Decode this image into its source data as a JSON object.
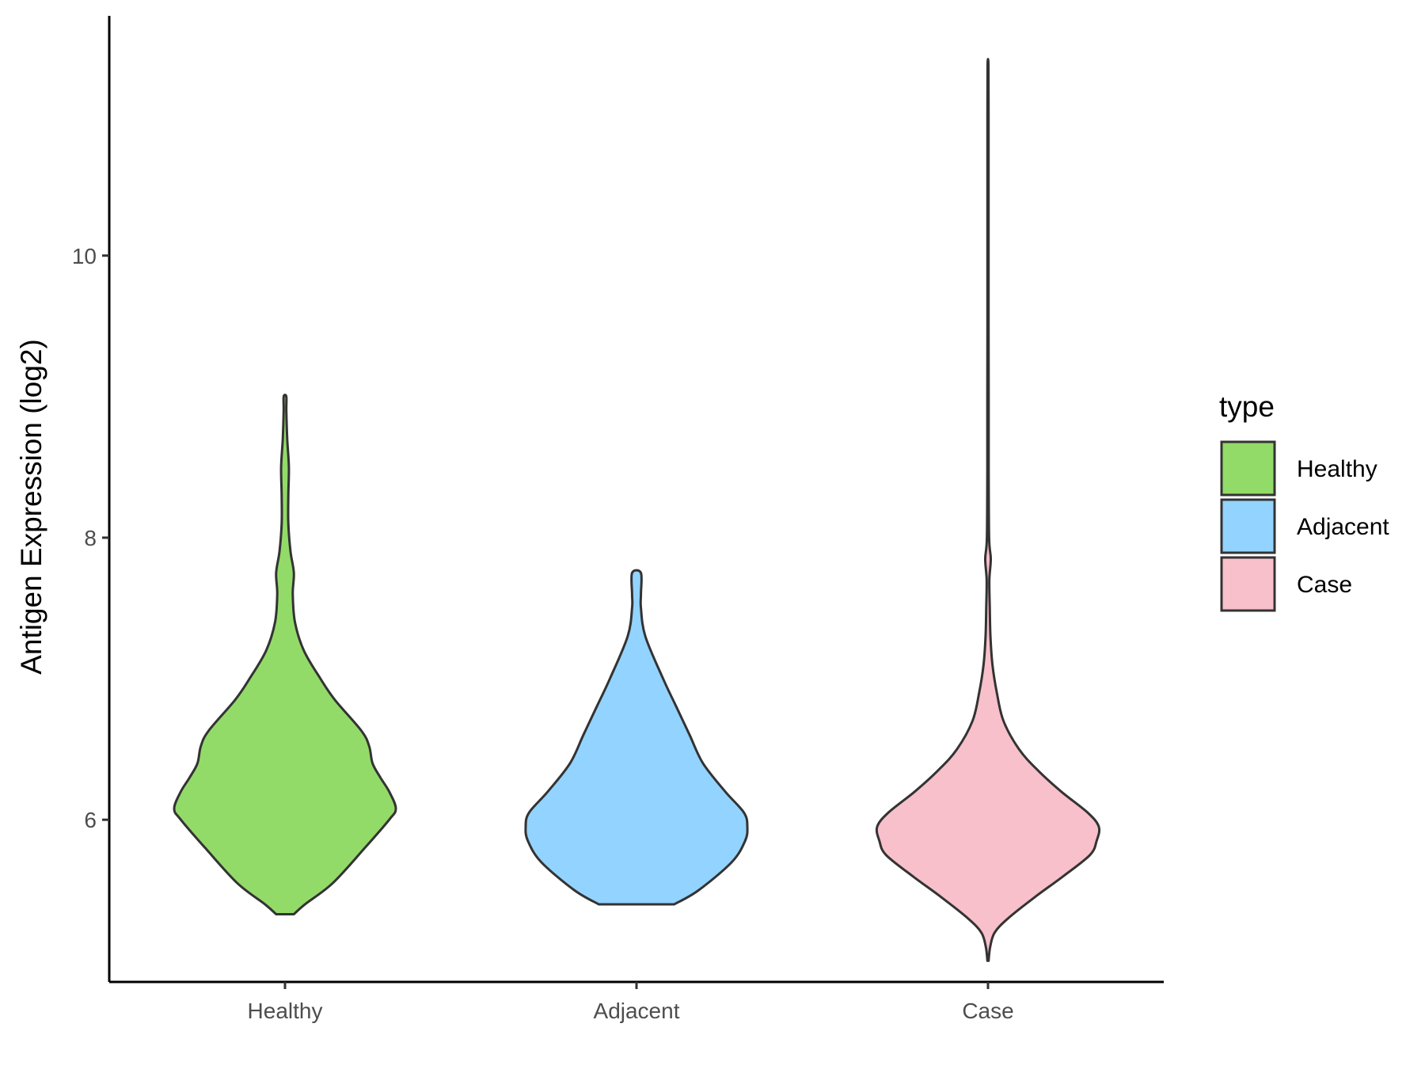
{
  "chart_data": {
    "type": "violin",
    "title": "",
    "xlabel": "",
    "ylabel": "Antigen Expression (log2)",
    "ylim": [
      4.85,
      11.7
    ],
    "yticks": [
      6,
      8,
      10
    ],
    "grid": false,
    "legend": {
      "title": "type",
      "position": "right",
      "entries": [
        {
          "label": "Healthy",
          "color": "#93db69"
        },
        {
          "label": "Adjacent",
          "color": "#93d3ff"
        },
        {
          "label": "Case",
          "color": "#f8c0cb"
        }
      ]
    },
    "categories": [
      "Healthy",
      "Adjacent",
      "Case"
    ],
    "series": [
      {
        "name": "Healthy",
        "color": "#93db69",
        "min": 5.33,
        "max": 9.0,
        "density_profile": [
          [
            5.33,
            0.08
          ],
          [
            5.4,
            0.18
          ],
          [
            5.55,
            0.43
          ],
          [
            5.8,
            0.72
          ],
          [
            6.0,
            0.94
          ],
          [
            6.08,
            1.0
          ],
          [
            6.2,
            0.94
          ],
          [
            6.3,
            0.86
          ],
          [
            6.4,
            0.79
          ],
          [
            6.52,
            0.76
          ],
          [
            6.63,
            0.69
          ],
          [
            6.85,
            0.45
          ],
          [
            7.0,
            0.32
          ],
          [
            7.2,
            0.17
          ],
          [
            7.4,
            0.09
          ],
          [
            7.6,
            0.07
          ],
          [
            7.75,
            0.08
          ],
          [
            7.9,
            0.05
          ],
          [
            8.1,
            0.03
          ],
          [
            8.3,
            0.03
          ],
          [
            8.5,
            0.035
          ],
          [
            8.7,
            0.02
          ],
          [
            8.9,
            0.012
          ],
          [
            9.0,
            0.012
          ]
        ]
      },
      {
        "name": "Adjacent",
        "color": "#93d3ff",
        "min": 5.4,
        "max": 7.75,
        "density_profile": [
          [
            5.4,
            0.34
          ],
          [
            5.5,
            0.56
          ],
          [
            5.7,
            0.86
          ],
          [
            5.85,
            0.98
          ],
          [
            5.95,
            1.0
          ],
          [
            6.05,
            0.97
          ],
          [
            6.2,
            0.8
          ],
          [
            6.4,
            0.6
          ],
          [
            6.6,
            0.48
          ],
          [
            6.8,
            0.36
          ],
          [
            7.0,
            0.24
          ],
          [
            7.3,
            0.08
          ],
          [
            7.5,
            0.04
          ],
          [
            7.6,
            0.04
          ],
          [
            7.75,
            0.04
          ]
        ]
      },
      {
        "name": "Case",
        "color": "#f8c0cb",
        "min": 5.0,
        "max": 11.35,
        "density_profile": [
          [
            5.0,
            0.005
          ],
          [
            5.1,
            0.02
          ],
          [
            5.2,
            0.06
          ],
          [
            5.3,
            0.18
          ],
          [
            5.45,
            0.42
          ],
          [
            5.6,
            0.68
          ],
          [
            5.75,
            0.92
          ],
          [
            5.85,
            0.98
          ],
          [
            5.95,
            1.0
          ],
          [
            6.05,
            0.9
          ],
          [
            6.2,
            0.66
          ],
          [
            6.35,
            0.45
          ],
          [
            6.5,
            0.28
          ],
          [
            6.7,
            0.14
          ],
          [
            6.9,
            0.08
          ],
          [
            7.1,
            0.04
          ],
          [
            7.3,
            0.022
          ],
          [
            7.5,
            0.016
          ],
          [
            7.7,
            0.012
          ],
          [
            7.85,
            0.025
          ],
          [
            8.0,
            0.01
          ],
          [
            8.5,
            0.006
          ],
          [
            9.0,
            0.006
          ],
          [
            9.5,
            0.005
          ],
          [
            10.0,
            0.005
          ],
          [
            10.5,
            0.005
          ],
          [
            11.0,
            0.005
          ],
          [
            11.35,
            0.004
          ]
        ]
      }
    ]
  }
}
